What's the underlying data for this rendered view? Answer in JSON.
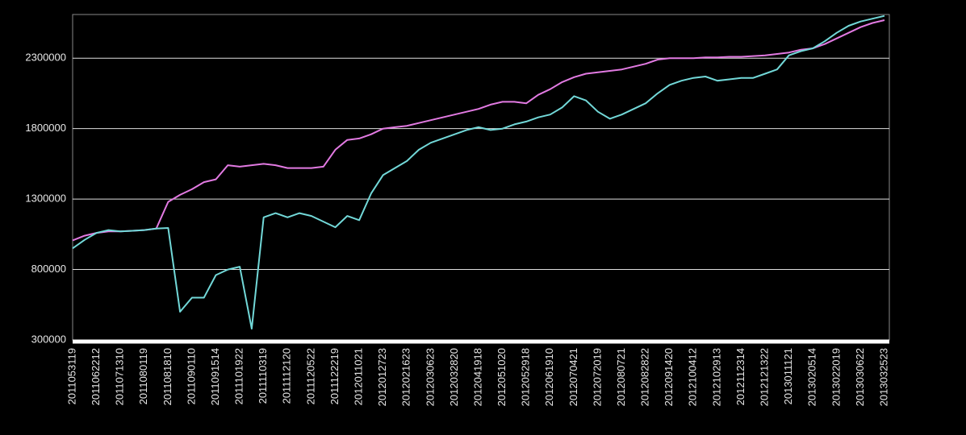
{
  "chart_data": {
    "type": "line",
    "categories": [
      "2011053119",
      null,
      "2011062212",
      null,
      "2011071310",
      null,
      "2011080119",
      null,
      "2011081810",
      null,
      "2011090110",
      null,
      "2011091514",
      null,
      "2011101922",
      null,
      "2011110319",
      null,
      "2011112120",
      null,
      "2011120522",
      null,
      "2011122219",
      null,
      "2012011021",
      null,
      "2012012723",
      null,
      "2012021623",
      null,
      "2012030623",
      null,
      "2012032820",
      null,
      "2012041918",
      null,
      "2012051020",
      null,
      "2012052918",
      null,
      "2012061910",
      null,
      "2012070421",
      null,
      "2012072019",
      null,
      "2012080721",
      null,
      "2012082822",
      null,
      "2012091420",
      null,
      "2012100412",
      null,
      "2012102913",
      null,
      "2012112314",
      null,
      "2012121322",
      null,
      "2013011121",
      null,
      "2013020514",
      null,
      "2013022019",
      null,
      "2013030622",
      null,
      "2013032523"
    ],
    "series": [
      {
        "color": "#e27ae2",
        "values": [
          1007000,
          1040000,
          1060000,
          1070000,
          1070000,
          1075000,
          1080000,
          1090000,
          1280000,
          1330000,
          1370000,
          1420000,
          1440000,
          1540000,
          1530000,
          1540000,
          1550000,
          1540000,
          1520000,
          1520000,
          1520000,
          1530000,
          1650000,
          1720000,
          1730000,
          1760000,
          1800000,
          1810000,
          1820000,
          1840000,
          1860000,
          1880000,
          1900000,
          1920000,
          1940000,
          1970000,
          1990000,
          1990000,
          1980000,
          2040000,
          2080000,
          2130000,
          2165000,
          2190000,
          2200000,
          2210000,
          2220000,
          2240000,
          2260000,
          2290000,
          2300000,
          2300000,
          2300000,
          2305000,
          2305000,
          2310000,
          2310000,
          2315000,
          2320000,
          2330000,
          2340000,
          2360000,
          2370000,
          2400000,
          2440000,
          2480000,
          2520000,
          2550000,
          2570000
        ]
      },
      {
        "color": "#72d8d8",
        "values": [
          950000,
          1010000,
          1060000,
          1080000,
          1070000,
          1075000,
          1080000,
          1090000,
          1095000,
          500000,
          600000,
          600000,
          760000,
          800000,
          820000,
          380000,
          1170000,
          1200000,
          1170000,
          1200000,
          1180000,
          1140000,
          1100000,
          1180000,
          1150000,
          1340000,
          1470000,
          1520000,
          1570000,
          1650000,
          1700000,
          1730000,
          1760000,
          1790000,
          1810000,
          1790000,
          1800000,
          1830000,
          1850000,
          1880000,
          1900000,
          1950000,
          2030000,
          2000000,
          1920000,
          1870000,
          1900000,
          1940000,
          1980000,
          2050000,
          2110000,
          2140000,
          2160000,
          2170000,
          2140000,
          2150000,
          2160000,
          2160000,
          2190000,
          2220000,
          2320000,
          2350000,
          2370000,
          2420000,
          2480000,
          2530000,
          2560000,
          2580000,
          2600000
        ]
      }
    ],
    "ylim": [
      300000,
      2610000
    ],
    "yticks": [
      300000,
      800000,
      1300000,
      1800000,
      2300000
    ],
    "grid": true
  }
}
